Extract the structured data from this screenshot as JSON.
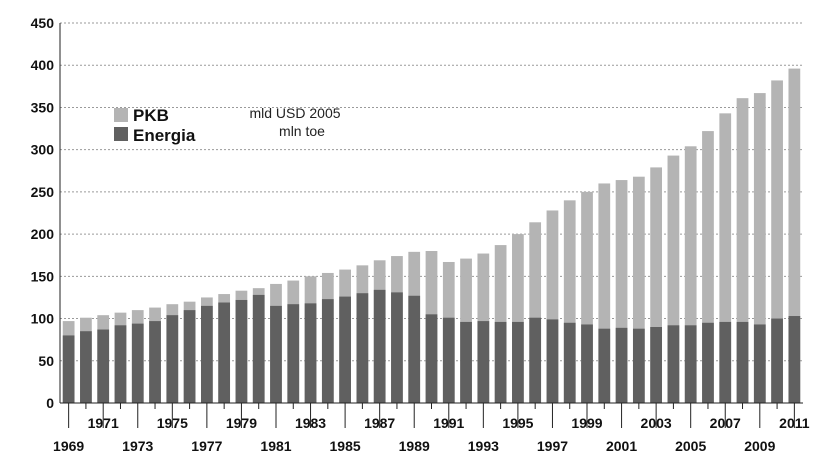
{
  "chart_data": {
    "type": "bar",
    "title": "",
    "xlabel": "",
    "ylabel": "",
    "ylim": [
      0,
      450
    ],
    "yticks": [
      0,
      50,
      100,
      150,
      200,
      250,
      300,
      350,
      400,
      450
    ],
    "grid": true,
    "legend_position": "top-left",
    "bar_mode": "overlapped",
    "categories": [
      "1969",
      "1970",
      "1971",
      "1972",
      "1973",
      "1974",
      "1975",
      "1976",
      "1977",
      "1978",
      "1979",
      "1980",
      "1981",
      "1982",
      "1983",
      "1984",
      "1985",
      "1986",
      "1987",
      "1988",
      "1989",
      "1990",
      "1991",
      "1992",
      "1993",
      "1994",
      "1995",
      "1996",
      "1997",
      "1998",
      "1999",
      "2000",
      "2001",
      "2002",
      "2003",
      "2004",
      "2005",
      "2006",
      "2007",
      "2008",
      "2009",
      "2010",
      "2011"
    ],
    "series": [
      {
        "name": "PKB",
        "color": "#b4b4b4",
        "values": [
          97,
          101,
          104,
          107,
          110,
          113,
          117,
          120,
          125,
          129,
          133,
          136,
          141,
          145,
          150,
          154,
          158,
          163,
          169,
          174,
          179,
          180,
          167,
          171,
          177,
          187,
          200,
          214,
          228,
          240,
          250,
          260,
          264,
          268,
          279,
          293,
          304,
          322,
          343,
          361,
          367,
          382,
          396
        ]
      },
      {
        "name": "Energia",
        "color": "#606060",
        "values": [
          80,
          85,
          87,
          92,
          94,
          97,
          104,
          110,
          115,
          119,
          122,
          128,
          115,
          117,
          118,
          123,
          126,
          130,
          134,
          131,
          127,
          105,
          101,
          96,
          97,
          96,
          96,
          101,
          99,
          95,
          93,
          88,
          89,
          88,
          90,
          92,
          92,
          95,
          96,
          96,
          93,
          100,
          103
        ]
      }
    ],
    "x_tick_labels_upper": [
      "1971",
      "1975",
      "1979",
      "1983",
      "1987",
      "1991",
      "1995",
      "1999",
      "2003",
      "2007",
      "2011"
    ],
    "x_tick_labels_lower": [
      "1969",
      "1973",
      "1977",
      "1981",
      "1985",
      "1989",
      "1993",
      "1997",
      "2001",
      "2005",
      "2009"
    ],
    "legend": [
      {
        "label": "PKB",
        "color": "#b4b4b4"
      },
      {
        "label": "Energia",
        "color": "#606060"
      }
    ],
    "annotations": [
      "mld USD 2005",
      "mln toe"
    ]
  }
}
